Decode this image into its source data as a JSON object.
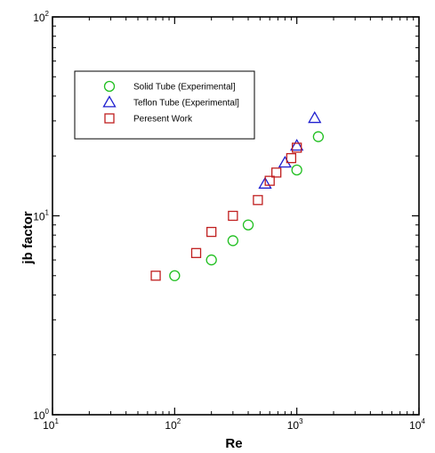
{
  "chart_data": {
    "type": "scatter",
    "title": "",
    "xlabel": "Re",
    "ylabel": "jb factor",
    "xscale": "log",
    "yscale": "log",
    "xlim": [
      10,
      10000
    ],
    "ylim": [
      1,
      100
    ],
    "grid": false,
    "legend_position": "top-left",
    "x_ticks": [
      {
        "base": "10",
        "exp": "1",
        "value": 10
      },
      {
        "base": "10",
        "exp": "2",
        "value": 100
      },
      {
        "base": "10",
        "exp": "3",
        "value": 1000
      },
      {
        "base": "10",
        "exp": "4",
        "value": 10000
      }
    ],
    "y_ticks": [
      {
        "base": "10",
        "exp": "0",
        "value": 1
      },
      {
        "base": "10",
        "exp": "1",
        "value": 10
      },
      {
        "base": "10",
        "exp": "2",
        "value": 100
      }
    ],
    "series": [
      {
        "name": "Solid Tube (Experimental]",
        "marker": "circle",
        "color": "#1fbf1f",
        "points": [
          [
            100,
            5.0
          ],
          [
            200,
            6.0
          ],
          [
            300,
            7.5
          ],
          [
            400,
            9.0
          ],
          [
            1000,
            17.0
          ],
          [
            1500,
            25.0
          ]
        ]
      },
      {
        "name": "Teflon Tube (Experimental]",
        "marker": "triangle",
        "color": "#1f1fcf",
        "points": [
          [
            550,
            14.5
          ],
          [
            800,
            18.5
          ],
          [
            1000,
            22.5
          ],
          [
            1400,
            31.0
          ]
        ]
      },
      {
        "name": "Peresent Work",
        "marker": "square",
        "color": "#c01f1f",
        "points": [
          [
            70,
            5.0
          ],
          [
            150,
            6.5
          ],
          [
            200,
            8.3
          ],
          [
            300,
            10.0
          ],
          [
            480,
            12.0
          ],
          [
            600,
            15.0
          ],
          [
            680,
            16.5
          ],
          [
            900,
            19.5
          ],
          [
            1000,
            22.0
          ]
        ]
      }
    ]
  }
}
